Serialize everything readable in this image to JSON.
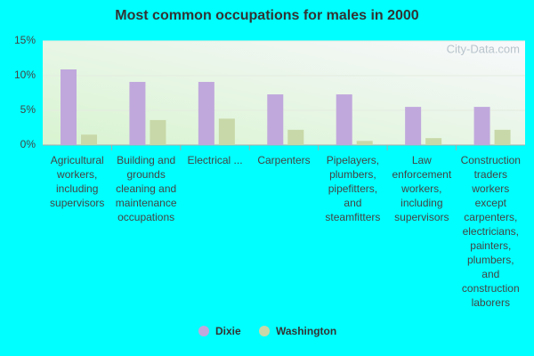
{
  "chart_data": {
    "type": "bar",
    "title": "Most common occupations for males in 2000",
    "watermark": "City-Data.com",
    "categories": [
      "Agricultural workers, including supervisors",
      "Building and grounds cleaning and maintenance occupations",
      "Electrical ...",
      "Carpenters",
      "Pipelayers, plumbers, pipefitters, and steamfitters",
      "Law enforcement workers, including supervisors",
      "Construction traders workers except carpenters, electricians, painters, plumbers, and construction laborers"
    ],
    "series": [
      {
        "name": "Dixie",
        "color": "#c0a8dc",
        "values": [
          10.9,
          9.1,
          9.1,
          7.3,
          7.3,
          5.5,
          5.5
        ]
      },
      {
        "name": "Washington",
        "color": "#c8d8a8",
        "values": [
          1.5,
          3.6,
          3.8,
          2.2,
          0.6,
          1.0,
          2.2
        ]
      }
    ],
    "ylim": [
      0,
      15
    ],
    "yticks": [
      {
        "value": 0,
        "label": "0%"
      },
      {
        "value": 5,
        "label": "5%"
      },
      {
        "value": 10,
        "label": "10%"
      },
      {
        "value": 15,
        "label": "15%"
      }
    ],
    "grid": true
  }
}
